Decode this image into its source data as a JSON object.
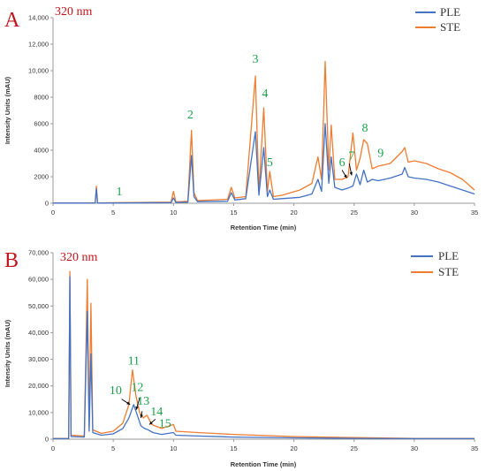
{
  "colors": {
    "PLE": "#4472c4",
    "STE": "#ed7d31",
    "panel": "#c0141c",
    "peak_label": "#1aa14a",
    "axis": "#999999"
  },
  "chart_data": [
    {
      "type": "line",
      "panel": "A",
      "wavelength": "320 nm",
      "xlabel": "Retention Time (min)",
      "ylabel": "Intensity Units (mAU)",
      "xlim": [
        0,
        35
      ],
      "ylim": [
        0,
        14000
      ],
      "x_ticks": [
        "0",
        "5",
        "10",
        "15",
        "20",
        "25",
        "30",
        "35"
      ],
      "y_ticks": [
        "0",
        "2000",
        "4000",
        "6000",
        "8000",
        "10,000",
        "12,000",
        "14,000"
      ],
      "legend_position": "top-right",
      "series": [
        {
          "name": "PLE",
          "color": "#4472c4",
          "points": [
            [
              0,
              10
            ],
            [
              3.5,
              10
            ],
            [
              3.6,
              1100
            ],
            [
              3.7,
              10
            ],
            [
              9.8,
              50
            ],
            [
              10.0,
              400
            ],
            [
              10.2,
              60
            ],
            [
              11.2,
              80
            ],
            [
              11.5,
              3600
            ],
            [
              11.7,
              500
            ],
            [
              12.0,
              120
            ],
            [
              14.5,
              150
            ],
            [
              14.8,
              800
            ],
            [
              15.1,
              250
            ],
            [
              16.0,
              350
            ],
            [
              16.8,
              5400
            ],
            [
              17.1,
              600
            ],
            [
              17.5,
              4200
            ],
            [
              17.8,
              500
            ],
            [
              18.0,
              1000
            ],
            [
              18.3,
              300
            ],
            [
              19.0,
              350
            ],
            [
              20.5,
              450
            ],
            [
              21.5,
              700
            ],
            [
              22.0,
              1800
            ],
            [
              22.3,
              900
            ],
            [
              22.6,
              6000
            ],
            [
              22.9,
              1500
            ],
            [
              23.1,
              3500
            ],
            [
              23.4,
              1200
            ],
            [
              24.0,
              1000
            ],
            [
              24.5,
              1150
            ],
            [
              24.9,
              1300
            ],
            [
              25.2,
              2200
            ],
            [
              25.5,
              1400
            ],
            [
              25.8,
              2500
            ],
            [
              26.1,
              1600
            ],
            [
              26.5,
              1800
            ],
            [
              27.0,
              1700
            ],
            [
              28.0,
              1900
            ],
            [
              29.0,
              2200
            ],
            [
              29.2,
              2700
            ],
            [
              29.5,
              2000
            ],
            [
              30.0,
              1900
            ],
            [
              31.0,
              1800
            ],
            [
              32.0,
              1600
            ],
            [
              33.0,
              1300
            ],
            [
              34.0,
              1000
            ],
            [
              35.0,
              700
            ]
          ]
        },
        {
          "name": "STE",
          "color": "#ed7d31",
          "points": [
            [
              0,
              30
            ],
            [
              3.5,
              30
            ],
            [
              3.6,
              1300
            ],
            [
              3.7,
              30
            ],
            [
              9.8,
              80
            ],
            [
              10.0,
              900
            ],
            [
              10.2,
              100
            ],
            [
              11.2,
              150
            ],
            [
              11.5,
              5500
            ],
            [
              11.7,
              800
            ],
            [
              12.0,
              200
            ],
            [
              14.5,
              300
            ],
            [
              14.8,
              1200
            ],
            [
              15.1,
              400
            ],
            [
              16.0,
              500
            ],
            [
              16.8,
              9600
            ],
            [
              17.1,
              900
            ],
            [
              17.5,
              7200
            ],
            [
              17.8,
              900
            ],
            [
              18.0,
              2400
            ],
            [
              18.3,
              500
            ],
            [
              19.0,
              600
            ],
            [
              20.5,
              1000
            ],
            [
              21.5,
              1500
            ],
            [
              22.0,
              3500
            ],
            [
              22.3,
              1800
            ],
            [
              22.6,
              10700
            ],
            [
              22.9,
              2500
            ],
            [
              23.1,
              5900
            ],
            [
              23.4,
              1800
            ],
            [
              24.0,
              1800
            ],
            [
              24.5,
              2000
            ],
            [
              24.9,
              5300
            ],
            [
              25.2,
              2500
            ],
            [
              25.5,
              3400
            ],
            [
              25.8,
              4800
            ],
            [
              26.1,
              4500
            ],
            [
              26.5,
              2600
            ],
            [
              27.0,
              2800
            ],
            [
              28.0,
              3000
            ],
            [
              29.0,
              3900
            ],
            [
              29.2,
              4200
            ],
            [
              29.5,
              3100
            ],
            [
              30.0,
              3200
            ],
            [
              31.0,
              3000
            ],
            [
              32.0,
              2600
            ],
            [
              33.0,
              2300
            ],
            [
              34.0,
              1800
            ],
            [
              35.0,
              1000
            ]
          ]
        }
      ],
      "peaks": [
        {
          "label": "1",
          "x": 5.5,
          "y": 600
        },
        {
          "label": "2",
          "x": 11.4,
          "y": 6400
        },
        {
          "label": "3",
          "x": 16.8,
          "y": 10600
        },
        {
          "label": "4",
          "x": 17.6,
          "y": 8000
        },
        {
          "label": "5",
          "x": 18.0,
          "y": 2800
        },
        {
          "label": "6",
          "x": 24.0,
          "y": 2800
        },
        {
          "label": "7",
          "x": 24.8,
          "y": 3300
        },
        {
          "label": "8",
          "x": 25.9,
          "y": 5400
        },
        {
          "label": "9",
          "x": 27.2,
          "y": 3500
        }
      ],
      "arrows": [
        {
          "from": [
            24.0,
            2500
          ],
          "to": [
            24.4,
            1900
          ]
        },
        {
          "from": [
            24.6,
            3000
          ],
          "to": [
            24.8,
            2100
          ]
        }
      ]
    },
    {
      "type": "line",
      "panel": "B",
      "wavelength": "320 nm",
      "xlabel": "Retention Time (min)",
      "ylabel": "Intensity Units (mAU)",
      "xlim": [
        0,
        35
      ],
      "ylim": [
        0,
        70000
      ],
      "x_ticks": [
        "0",
        "5",
        "10",
        "15",
        "20",
        "25",
        "30",
        "35"
      ],
      "y_ticks": [
        "0",
        "10,000",
        "20,000",
        "30,000",
        "40,000",
        "50,000",
        "60,000",
        "70,000"
      ],
      "legend_position": "top-right",
      "series": [
        {
          "name": "PLE",
          "color": "#4472c4",
          "points": [
            [
              0,
              200
            ],
            [
              1.3,
              200
            ],
            [
              1.4,
              61000
            ],
            [
              1.5,
              1000
            ],
            [
              2.6,
              800
            ],
            [
              2.85,
              48000
            ],
            [
              3.0,
              3000
            ],
            [
              3.15,
              32000
            ],
            [
              3.3,
              2500
            ],
            [
              4.0,
              1500
            ],
            [
              5.0,
              2000
            ],
            [
              5.8,
              4000
            ],
            [
              6.3,
              8000
            ],
            [
              6.7,
              13000
            ],
            [
              7.0,
              9000
            ],
            [
              7.3,
              5000
            ],
            [
              7.6,
              4000
            ],
            [
              7.9,
              3500
            ],
            [
              8.3,
              2500
            ],
            [
              9.0,
              1800
            ],
            [
              10.0,
              2500
            ],
            [
              10.2,
              1500
            ],
            [
              12.0,
              1200
            ],
            [
              15.0,
              800
            ],
            [
              20.0,
              500
            ],
            [
              25.0,
              300
            ],
            [
              30.0,
              200
            ],
            [
              35.0,
              200
            ]
          ]
        },
        {
          "name": "STE",
          "color": "#ed7d31",
          "points": [
            [
              0,
              300
            ],
            [
              1.3,
              300
            ],
            [
              1.4,
              63000
            ],
            [
              1.5,
              1500
            ],
            [
              2.6,
              1200
            ],
            [
              2.85,
              60000
            ],
            [
              3.0,
              4500
            ],
            [
              3.15,
              51000
            ],
            [
              3.3,
              3500
            ],
            [
              4.0,
              2200
            ],
            [
              5.0,
              3000
            ],
            [
              5.8,
              6000
            ],
            [
              6.3,
              13000
            ],
            [
              6.6,
              26000
            ],
            [
              6.9,
              16000
            ],
            [
              7.2,
              10000
            ],
            [
              7.5,
              8000
            ],
            [
              7.8,
              9000
            ],
            [
              8.2,
              5500
            ],
            [
              9.0,
              4000
            ],
            [
              10.0,
              5500
            ],
            [
              10.2,
              3000
            ],
            [
              12.0,
              2500
            ],
            [
              15.0,
              1800
            ],
            [
              20.0,
              1000
            ],
            [
              25.0,
              600
            ],
            [
              30.0,
              300
            ],
            [
              35.0,
              300
            ]
          ]
        }
      ],
      "peaks": [
        {
          "label": "10",
          "x": 5.2,
          "y": 17000
        },
        {
          "label": "11",
          "x": 6.7,
          "y": 28000
        },
        {
          "label": "12",
          "x": 7.0,
          "y": 18000
        },
        {
          "label": "13",
          "x": 7.5,
          "y": 13000
        },
        {
          "label": "14",
          "x": 8.6,
          "y": 9000
        },
        {
          "label": "15",
          "x": 9.3,
          "y": 4500
        }
      ],
      "arrows": [
        {
          "from": [
            5.7,
            15000
          ],
          "to": [
            6.4,
            13000
          ]
        },
        {
          "from": [
            7.2,
            15500
          ],
          "to": [
            6.9,
            11000
          ]
        },
        {
          "from": [
            7.4,
            10500
          ],
          "to": [
            7.3,
            8000
          ]
        },
        {
          "from": [
            8.5,
            7500
          ],
          "to": [
            8.0,
            5500
          ]
        }
      ]
    }
  ]
}
